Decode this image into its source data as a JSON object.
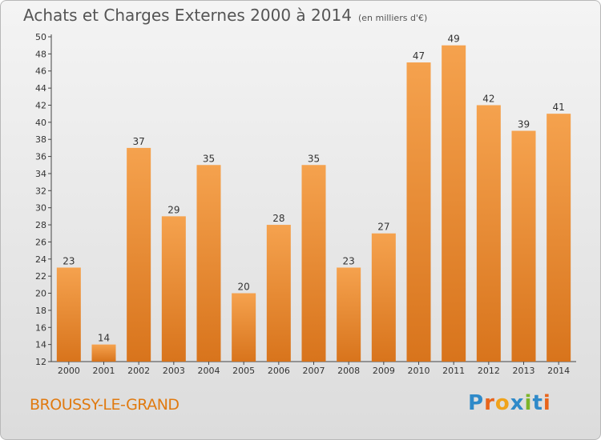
{
  "header": {
    "title": "Achats et Charges Externes 2000 à 2014",
    "subtitle": "(en milliers d'€)"
  },
  "footer": {
    "commune": "BROUSSY-LE-GRAND",
    "logo_letters": [
      "P",
      "r",
      "o",
      "x",
      "i",
      "t",
      "i"
    ],
    "logo_colors": [
      "#2f8ac9",
      "#e8641b",
      "#f0a31b",
      "#2f8ac9",
      "#7cb52a",
      "#2f8ac9",
      "#e8641b"
    ]
  },
  "chart_data": {
    "type": "bar",
    "title": "Achats et Charges Externes 2000 à 2014",
    "categories": [
      "2000",
      "2001",
      "2002",
      "2003",
      "2004",
      "2005",
      "2006",
      "2007",
      "2008",
      "2009",
      "2010",
      "2011",
      "2012",
      "2013",
      "2014"
    ],
    "values": [
      23,
      14,
      37,
      29,
      35,
      20,
      28,
      35,
      23,
      27,
      47,
      49,
      42,
      39,
      41
    ],
    "ylim": [
      12,
      50
    ],
    "yticks": [
      12,
      14,
      16,
      18,
      20,
      22,
      24,
      26,
      28,
      30,
      32,
      34,
      36,
      38,
      40,
      42,
      44,
      46,
      48,
      50
    ],
    "grid": false,
    "bar_color_top": "#f5a24e",
    "bar_color_bottom": "#d8741c"
  }
}
